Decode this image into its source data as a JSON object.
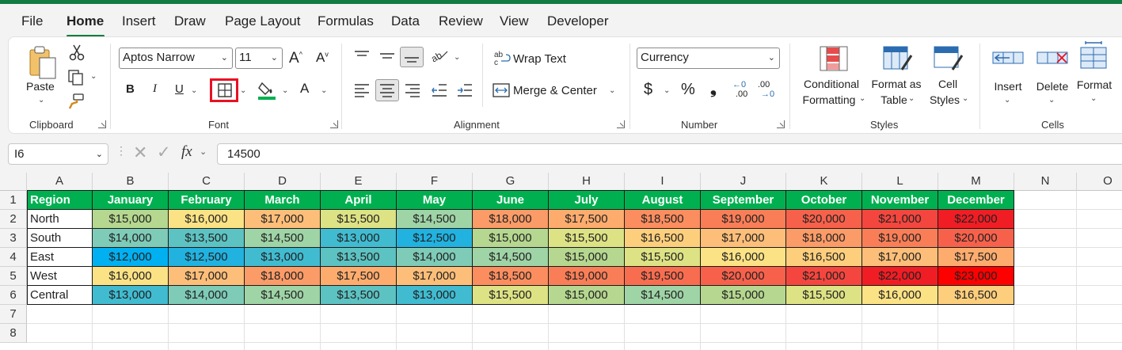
{
  "menu": {
    "tabs": [
      "File",
      "Home",
      "Insert",
      "Draw",
      "Page Layout",
      "Formulas",
      "Data",
      "Review",
      "View",
      "Developer"
    ],
    "active": "Home"
  },
  "ribbon": {
    "clipboard": {
      "paste_label": "Paste",
      "group_label": "Clipboard"
    },
    "font": {
      "font_name": "Aptos Narrow",
      "font_size": "11",
      "bold": "B",
      "italic": "I",
      "underline": "U",
      "font_color_glyph": "A",
      "group_label": "Font"
    },
    "alignment": {
      "wrap_text": "Wrap Text",
      "merge_center": "Merge & Center",
      "group_label": "Alignment"
    },
    "number": {
      "format": "Currency",
      "dollar": "$",
      "percent": "%",
      "comma": "❟",
      "inc_decimal": ".00",
      "dec_decimal": ".00",
      "group_label": "Number"
    },
    "styles": {
      "conditional_1": "Conditional",
      "conditional_2": "Formatting",
      "format_table_1": "Format as",
      "format_table_2": "Table",
      "cell_styles_1": "Cell",
      "cell_styles_2": "Styles",
      "group_label": "Styles"
    },
    "cells": {
      "insert": "Insert",
      "delete": "Delete",
      "format": "Format",
      "group_label": "Cells"
    },
    "highlight_color": "#e81123"
  },
  "formula_bar": {
    "name_box": "I6",
    "fx": "fx",
    "value": "14500"
  },
  "sheet": {
    "columns": [
      "A",
      "B",
      "C",
      "D",
      "E",
      "F",
      "G",
      "H",
      "I",
      "J",
      "K",
      "L",
      "M",
      "N",
      "O"
    ],
    "row_numbers": [
      "1",
      "2",
      "3",
      "4",
      "5",
      "6",
      "7",
      "8"
    ],
    "header": [
      "Region",
      "January",
      "February",
      "March",
      "April",
      "May",
      "June",
      "July",
      "August",
      "September",
      "October",
      "November",
      "December"
    ],
    "rows": [
      {
        "region": "North",
        "values": [
          "$15,000",
          "$16,000",
          "$17,000",
          "$15,500",
          "$14,500",
          "$18,000",
          "$17,500",
          "$18,500",
          "$19,000",
          "$20,000",
          "$21,000",
          "$22,000"
        ],
        "colors": [
          "#b5d78f",
          "#fbe285",
          "#fcbe79",
          "#dde284",
          "#9fd4a6",
          "#fb9b67",
          "#fdac6e",
          "#fb8d5f",
          "#f97e57",
          "#f7614b",
          "#f4463e",
          "#f11d24"
        ]
      },
      {
        "region": "South",
        "values": [
          "$14,000",
          "$13,500",
          "$14,500",
          "$13,000",
          "$12,500",
          "$15,000",
          "$15,500",
          "$16,500",
          "$17,000",
          "$18,000",
          "$19,000",
          "$20,000"
        ],
        "colors": [
          "#7ecbb7",
          "#5dc2c2",
          "#9fd4a6",
          "#41bbd0",
          "#21b2e0",
          "#b5d78f",
          "#dde284",
          "#fdcf7d",
          "#fcbe79",
          "#fb9b67",
          "#f97e57",
          "#f7614b"
        ]
      },
      {
        "region": "East",
        "values": [
          "$12,000",
          "$12,500",
          "$13,000",
          "$13,500",
          "$14,000",
          "$14,500",
          "$15,000",
          "$15,500",
          "$16,000",
          "$16,500",
          "$17,000",
          "$17,500"
        ],
        "colors": [
          "#00b0f0",
          "#21b2e0",
          "#41bbd0",
          "#5dc2c2",
          "#7ecbb7",
          "#9fd4a6",
          "#b5d78f",
          "#dde284",
          "#fbe285",
          "#fdcf7d",
          "#fcbe79",
          "#fdac6e"
        ]
      },
      {
        "region": "West",
        "values": [
          "$16,000",
          "$17,000",
          "$18,000",
          "$17,500",
          "$17,000",
          "$18,500",
          "$19,000",
          "$19,500",
          "$20,000",
          "$21,000",
          "$22,000",
          "$23,000"
        ],
        "colors": [
          "#fbe285",
          "#fcbe79",
          "#fb9b67",
          "#fdac6e",
          "#fcbe79",
          "#fb8d5f",
          "#f97e57",
          "#f86d50",
          "#f7614b",
          "#f4463e",
          "#f11d24",
          "#ff0000"
        ]
      },
      {
        "region": "Central",
        "values": [
          "$13,000",
          "$14,000",
          "$14,500",
          "$13,500",
          "$13,000",
          "$15,500",
          "$15,000",
          "$14,500",
          "$15,000",
          "$15,500",
          "$16,000",
          "$16,500"
        ],
        "colors": [
          "#41bbd0",
          "#7ecbb7",
          "#9fd4a6",
          "#5dc2c2",
          "#41bbd0",
          "#dde284",
          "#b5d78f",
          "#9fd4a6",
          "#b5d78f",
          "#dde284",
          "#fbe285",
          "#fdcf7d"
        ]
      }
    ]
  }
}
